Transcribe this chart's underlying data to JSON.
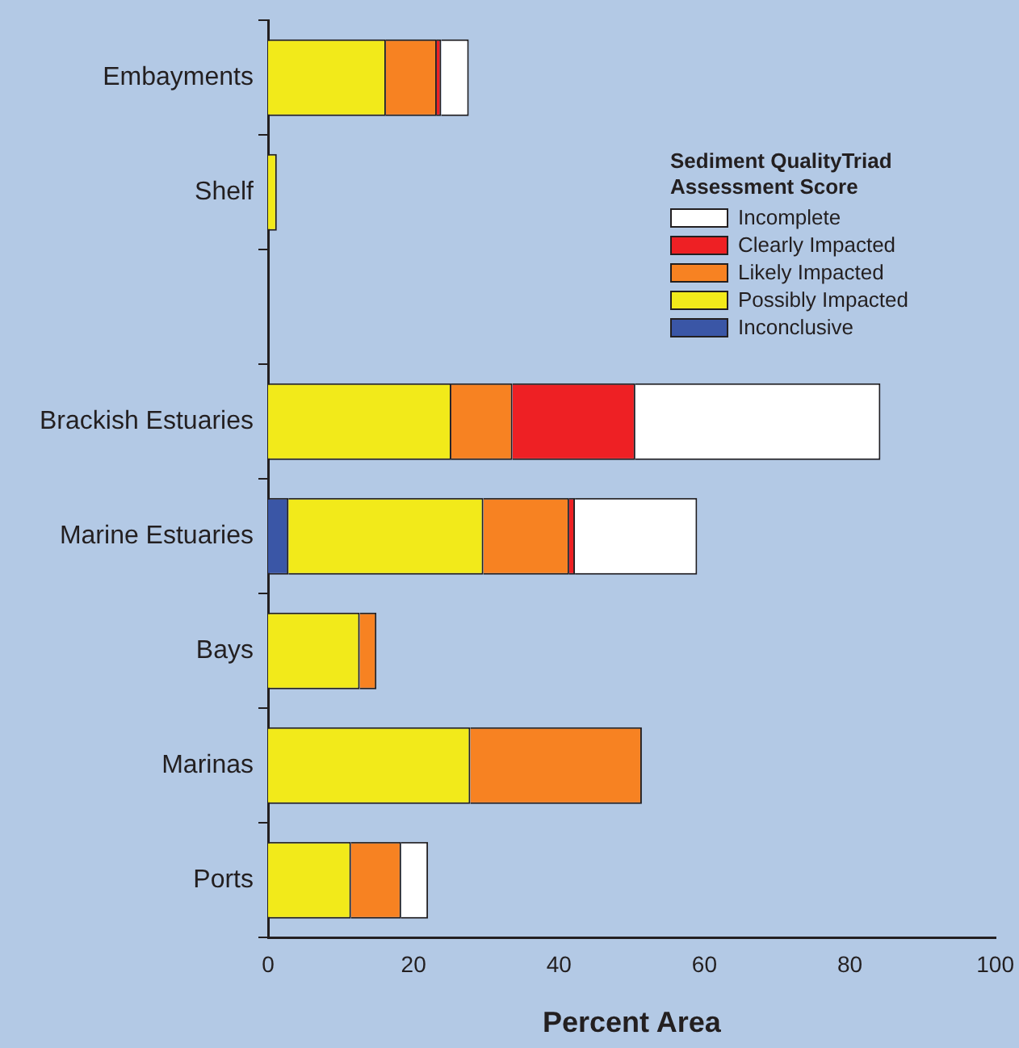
{
  "chart_data": {
    "type": "bar",
    "orientation": "horizontal",
    "stacked": true,
    "categories": [
      "Embayments",
      "Shelf",
      null,
      "Brackish Estuaries",
      "Marine Estuaries",
      "Bays",
      "Marinas",
      "Ports"
    ],
    "series": [
      {
        "name": "Inconclusive",
        "color": "#3a56a6",
        "values": [
          null,
          null,
          null,
          null,
          2.8,
          null,
          null,
          null
        ]
      },
      {
        "name": "Possibly Impacted",
        "color": "#f2ea1a",
        "values": [
          16.2,
          1.2,
          null,
          25.2,
          26.8,
          12.6,
          27.8,
          11.4
        ]
      },
      {
        "name": "Likely Impacted",
        "color": "#f78222",
        "values": [
          7.0,
          null,
          null,
          8.4,
          11.8,
          2.3,
          23.6,
          6.9
        ]
      },
      {
        "name": "Clearly Impacted",
        "color": "#ee2024",
        "values": [
          0.6,
          null,
          null,
          16.9,
          0.8,
          null,
          null,
          null
        ]
      },
      {
        "name": "Incomplete",
        "color": "#ffffff",
        "values": [
          3.8,
          null,
          null,
          33.7,
          16.8,
          null,
          null,
          3.7
        ]
      }
    ],
    "xlabel": "Percent Area",
    "legend_title": "Sediment QualityTriad Assessment Score",
    "xlim": [
      0,
      100
    ],
    "xticks": [
      0,
      20,
      40,
      60,
      80,
      100
    ],
    "grid": false,
    "legend": "top right"
  }
}
